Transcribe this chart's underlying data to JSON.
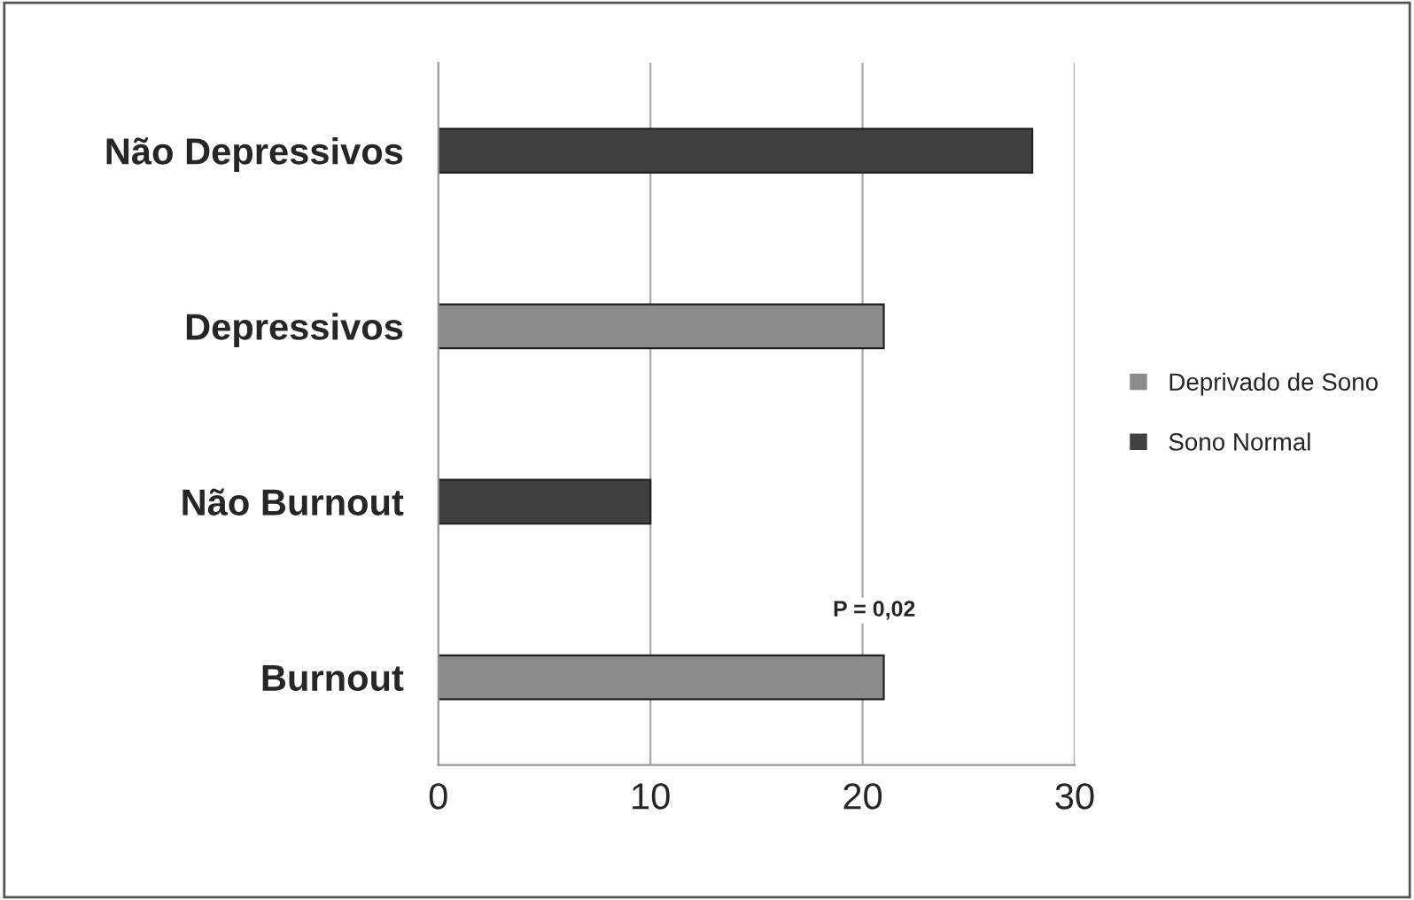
{
  "chart_data": {
    "type": "bar",
    "orientation": "horizontal",
    "categories": [
      "Não Depressivos",
      "Depressivos",
      "Não Burnout",
      "Burnout"
    ],
    "series": [
      {
        "name": "Deprivado de Sono",
        "color": "#8c8c8c",
        "values": [
          null,
          21,
          null,
          21
        ]
      },
      {
        "name": "Sono Normal",
        "color": "#404040",
        "values": [
          28,
          null,
          10,
          null
        ]
      }
    ],
    "xlim": [
      0,
      30
    ],
    "xticks": [
      0,
      10,
      20,
      30
    ],
    "grid": "x",
    "legend": "right",
    "annotations": [
      "P = 0,02"
    ]
  }
}
